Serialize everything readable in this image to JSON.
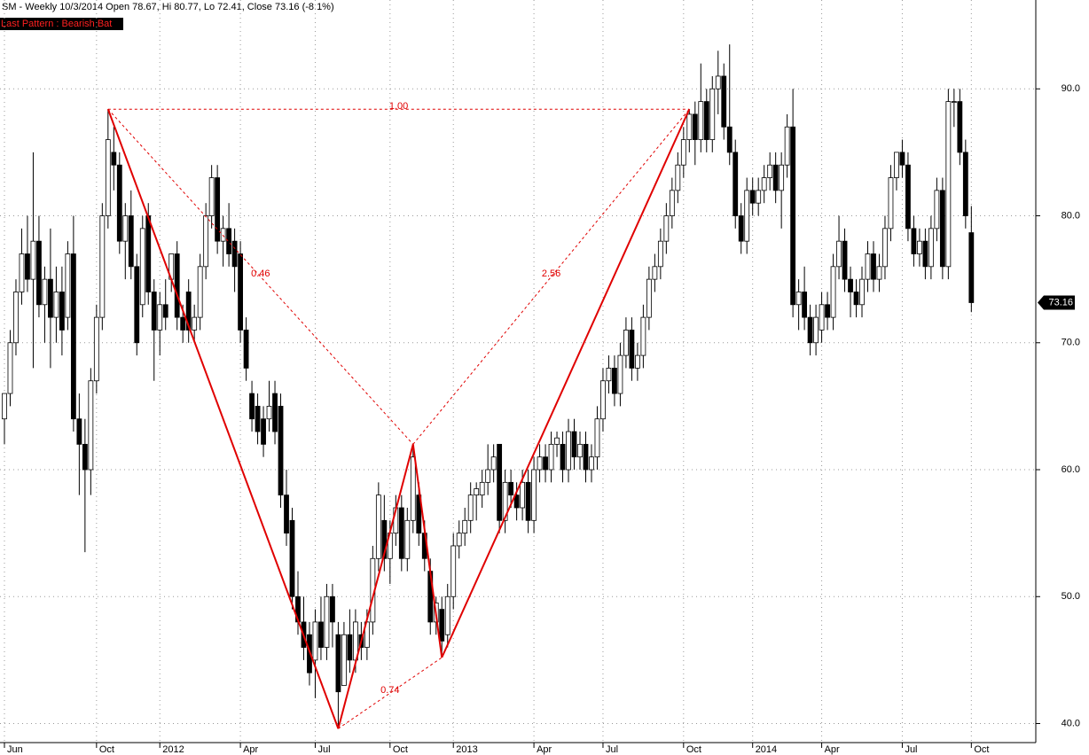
{
  "chart_data": {
    "type": "candlestick",
    "title": "SM - Weekly 10/3/2014 Open 78.67, Hi 80.77, Lo 72.41, Close 73.16 (-8.1%)",
    "pattern_label": "Last Pattern : Bearish Bat",
    "categories": [
      "Jun",
      null,
      null,
      null,
      null,
      null,
      null,
      null,
      null,
      null,
      null,
      null,
      null,
      null,
      null,
      null,
      "Oct",
      null,
      null,
      null,
      null,
      null,
      null,
      null,
      null,
      null,
      null,
      "2012",
      null,
      null,
      null,
      null,
      null,
      null,
      null,
      null,
      null,
      null,
      null,
      null,
      null,
      "Apr",
      null,
      null,
      null,
      null,
      null,
      null,
      null,
      null,
      null,
      null,
      null,
      null,
      "Jul",
      null,
      null,
      null,
      null,
      null,
      null,
      null,
      null,
      null,
      null,
      null,
      null,
      "Oct",
      null,
      null,
      null,
      null,
      null,
      null,
      null,
      null,
      null,
      null,
      "2013",
      null,
      null,
      null,
      null,
      null,
      null,
      null,
      null,
      null,
      null,
      null,
      null,
      null,
      "Apr",
      null,
      null,
      null,
      null,
      null,
      null,
      null,
      null,
      null,
      null,
      null,
      "Jul",
      null,
      null,
      null,
      null,
      null,
      null,
      null,
      null,
      null,
      null,
      null,
      null,
      null,
      "Oct",
      null,
      null,
      null,
      null,
      null,
      null,
      null,
      null,
      null,
      null,
      null,
      "2014",
      null,
      null,
      null,
      null,
      null,
      null,
      null,
      null,
      null,
      null,
      null,
      "Apr",
      null,
      null,
      null,
      null,
      null,
      null,
      null,
      null,
      null,
      null,
      null,
      null,
      null,
      "Jul",
      null,
      null,
      null,
      null,
      null,
      null,
      null,
      null,
      null,
      null,
      null,
      "Oct"
    ],
    "ohlc": [
      [
        64,
        66,
        62,
        66
      ],
      [
        66,
        71,
        65,
        70
      ],
      [
        70,
        75,
        69,
        74
      ],
      [
        74,
        79,
        73,
        77
      ],
      [
        77,
        80,
        74,
        75
      ],
      [
        75,
        85,
        68,
        78
      ],
      [
        78,
        80,
        72,
        73
      ],
      [
        73,
        76,
        70,
        75
      ],
      [
        75,
        79,
        68,
        72
      ],
      [
        72,
        76,
        70,
        74
      ],
      [
        74,
        76,
        69,
        71
      ],
      [
        72,
        78,
        71,
        77
      ],
      [
        77,
        80,
        63,
        64
      ],
      [
        64,
        66,
        58,
        62
      ],
      [
        62,
        64,
        53.5,
        60
      ],
      [
        60,
        68,
        58,
        67
      ],
      [
        67,
        73,
        66,
        72
      ],
      [
        72,
        81,
        71,
        80
      ],
      [
        80,
        88.4,
        79,
        86
      ],
      [
        85,
        87,
        82,
        84
      ],
      [
        84,
        85,
        77,
        78
      ],
      [
        78,
        81,
        75,
        80
      ],
      [
        80,
        82,
        75,
        76
      ],
      [
        76,
        77,
        69,
        70
      ],
      [
        73,
        80,
        72,
        79
      ],
      [
        80,
        81,
        73,
        74
      ],
      [
        74,
        75,
        67,
        71
      ],
      [
        71,
        74,
        69,
        73
      ],
      [
        73,
        75,
        71,
        72
      ],
      [
        75,
        77,
        74,
        77
      ],
      [
        77,
        78,
        71,
        72
      ],
      [
        72,
        73,
        70,
        71
      ],
      [
        74,
        75,
        70,
        71
      ],
      [
        71,
        73,
        70,
        72
      ],
      [
        72,
        77,
        71,
        76
      ],
      [
        76,
        81,
        75,
        80
      ],
      [
        80,
        84,
        79,
        83
      ],
      [
        83,
        84,
        77,
        78
      ],
      [
        78,
        80,
        76,
        79
      ],
      [
        79,
        81,
        76,
        77
      ],
      [
        78,
        79,
        74,
        76
      ],
      [
        77,
        78,
        70,
        71
      ],
      [
        71,
        72,
        67,
        68
      ],
      [
        66,
        67,
        63,
        64
      ],
      [
        65,
        66,
        62,
        63
      ],
      [
        64,
        65,
        61,
        62
      ],
      [
        64,
        67,
        63,
        65
      ],
      [
        66,
        67,
        62,
        63
      ],
      [
        65,
        66,
        57,
        58
      ],
      [
        58,
        60,
        54,
        55
      ],
      [
        56,
        57,
        49,
        50
      ],
      [
        50,
        52,
        47,
        48
      ],
      [
        48,
        50,
        45,
        46
      ],
      [
        47,
        48,
        43,
        44
      ],
      [
        45,
        49,
        42,
        48
      ],
      [
        48,
        50,
        45,
        46
      ],
      [
        46,
        51,
        45,
        50
      ],
      [
        50,
        51,
        46,
        48
      ],
      [
        47,
        48,
        39.6,
        42.5
      ],
      [
        43,
        48,
        43,
        47
      ],
      [
        47,
        49,
        44,
        45
      ],
      [
        45,
        49,
        44,
        48
      ],
      [
        47,
        48,
        45,
        46
      ],
      [
        46,
        49,
        45,
        48
      ],
      [
        48,
        54,
        47,
        53
      ],
      [
        53,
        59,
        52,
        58
      ],
      [
        56,
        58,
        52,
        53
      ],
      [
        53,
        56,
        51,
        55
      ],
      [
        55,
        58,
        54,
        57
      ],
      [
        57,
        58,
        52,
        53
      ],
      [
        53,
        57,
        52,
        56
      ],
      [
        56,
        62,
        55,
        61
      ],
      [
        58,
        59,
        54,
        55
      ],
      [
        55,
        56,
        52,
        53
      ],
      [
        52,
        53,
        47,
        48
      ],
      [
        48,
        50,
        47,
        49.5
      ],
      [
        49,
        50,
        45.2,
        46.5
      ],
      [
        47,
        51,
        46,
        50
      ],
      [
        50,
        55,
        49,
        54
      ],
      [
        54,
        56,
        53,
        55
      ],
      [
        55,
        57,
        54,
        56
      ],
      [
        56,
        59,
        55,
        58
      ],
      [
        58,
        59,
        56,
        58.5
      ],
      [
        58,
        60,
        57,
        59
      ],
      [
        59,
        62,
        58,
        60
      ],
      [
        60,
        62,
        59,
        61
      ],
      [
        62,
        62,
        55,
        56
      ],
      [
        56,
        60,
        55,
        59
      ],
      [
        59,
        60,
        57,
        58
      ],
      [
        58,
        59,
        56,
        57
      ],
      [
        57,
        60,
        56,
        59
      ],
      [
        59,
        60,
        55,
        56
      ],
      [
        56,
        61,
        55,
        60
      ],
      [
        60,
        62,
        59,
        61
      ],
      [
        61,
        62,
        59,
        60
      ],
      [
        60,
        63,
        59,
        62
      ],
      [
        62,
        63,
        61,
        62.5
      ],
      [
        62,
        63,
        59,
        60
      ],
      [
        60,
        64,
        59,
        63
      ],
      [
        63,
        64,
        60,
        61
      ],
      [
        61,
        63,
        60,
        62
      ],
      [
        62,
        63,
        59,
        60
      ],
      [
        60,
        62,
        59,
        61
      ],
      [
        61,
        65,
        60,
        64
      ],
      [
        64,
        68,
        63,
        67
      ],
      [
        67,
        69,
        66,
        68
      ],
      [
        68,
        69,
        65,
        66
      ],
      [
        66,
        70,
        65,
        69
      ],
      [
        69,
        72,
        68,
        71
      ],
      [
        71,
        72,
        67,
        68
      ],
      [
        68,
        70,
        67,
        69
      ],
      [
        69,
        73,
        68,
        72
      ],
      [
        72,
        76,
        71,
        75
      ],
      [
        75,
        77,
        74,
        76
      ],
      [
        76,
        79,
        75,
        78
      ],
      [
        78,
        81,
        77,
        80
      ],
      [
        80,
        83,
        79,
        82
      ],
      [
        82,
        85,
        81,
        84
      ],
      [
        84,
        87,
        83,
        86
      ],
      [
        86,
        88.4,
        85,
        88
      ],
      [
        88,
        89,
        84,
        86
      ],
      [
        86,
        92,
        85,
        89
      ],
      [
        89,
        90,
        85,
        86
      ],
      [
        86,
        91,
        85,
        90
      ],
      [
        90,
        93,
        88,
        91
      ],
      [
        91,
        92,
        86,
        87
      ],
      [
        87,
        93.5,
        84,
        85
      ],
      [
        85,
        86,
        79,
        80
      ],
      [
        80,
        81,
        77,
        78
      ],
      [
        78,
        83,
        77,
        82
      ],
      [
        82,
        83,
        80,
        81
      ],
      [
        81,
        83,
        80,
        82
      ],
      [
        82,
        84,
        81,
        83
      ],
      [
        83,
        85,
        82,
        84
      ],
      [
        84,
        85,
        81,
        82
      ],
      [
        82,
        85,
        79,
        84
      ],
      [
        84,
        88,
        83,
        87
      ],
      [
        87,
        90,
        72,
        73
      ],
      [
        73,
        75,
        71,
        74
      ],
      [
        74,
        76,
        71,
        72
      ],
      [
        72,
        73,
        69,
        70
      ],
      [
        70,
        73,
        69,
        72
      ],
      [
        71,
        74,
        70,
        73
      ],
      [
        73,
        74,
        71,
        72
      ],
      [
        72,
        77,
        71,
        76
      ],
      [
        76,
        80,
        75,
        78
      ],
      [
        78,
        79,
        74,
        75
      ],
      [
        75,
        76,
        72,
        74
      ],
      [
        74,
        75,
        72,
        73
      ],
      [
        73,
        76,
        72,
        75
      ],
      [
        75,
        78,
        74,
        77
      ],
      [
        77,
        78,
        74,
        75
      ],
      [
        75,
        77,
        74,
        76
      ],
      [
        76,
        80,
        75,
        79
      ],
      [
        79,
        84,
        78,
        83
      ],
      [
        83,
        85,
        82,
        85
      ],
      [
        85,
        86,
        83,
        84
      ],
      [
        84,
        85,
        78,
        79
      ],
      [
        79,
        80,
        76,
        77
      ],
      [
        77,
        79,
        76,
        78
      ],
      [
        78,
        79,
        75,
        76
      ],
      [
        76,
        80,
        75,
        79
      ],
      [
        79,
        83,
        78,
        82
      ],
      [
        82,
        83,
        75,
        76
      ],
      [
        76,
        90,
        75,
        89
      ],
      [
        89,
        90,
        87,
        89
      ],
      [
        89,
        90,
        84,
        85
      ],
      [
        85,
        86,
        79,
        80
      ],
      [
        78.67,
        80.77,
        72.41,
        73.16
      ]
    ],
    "pattern": {
      "x": [
        18,
        58,
        71,
        76,
        119
      ],
      "y": [
        88.4,
        39.6,
        62,
        45.2,
        88.4
      ],
      "ratios": [
        "1.00",
        "0.46",
        "0.74",
        "2.56"
      ],
      "color": "#e00000"
    },
    "ylim": [
      38.5,
      97
    ],
    "yticks": [
      {
        "value": 40,
        "label": "40.0"
      },
      {
        "value": 50,
        "label": "50.0"
      },
      {
        "value": 60,
        "label": "60.0"
      },
      {
        "value": 70,
        "label": "70.0"
      },
      {
        "value": 80,
        "label": "80.0"
      },
      {
        "value": 90,
        "label": "90.0"
      }
    ],
    "grid": true
  }
}
